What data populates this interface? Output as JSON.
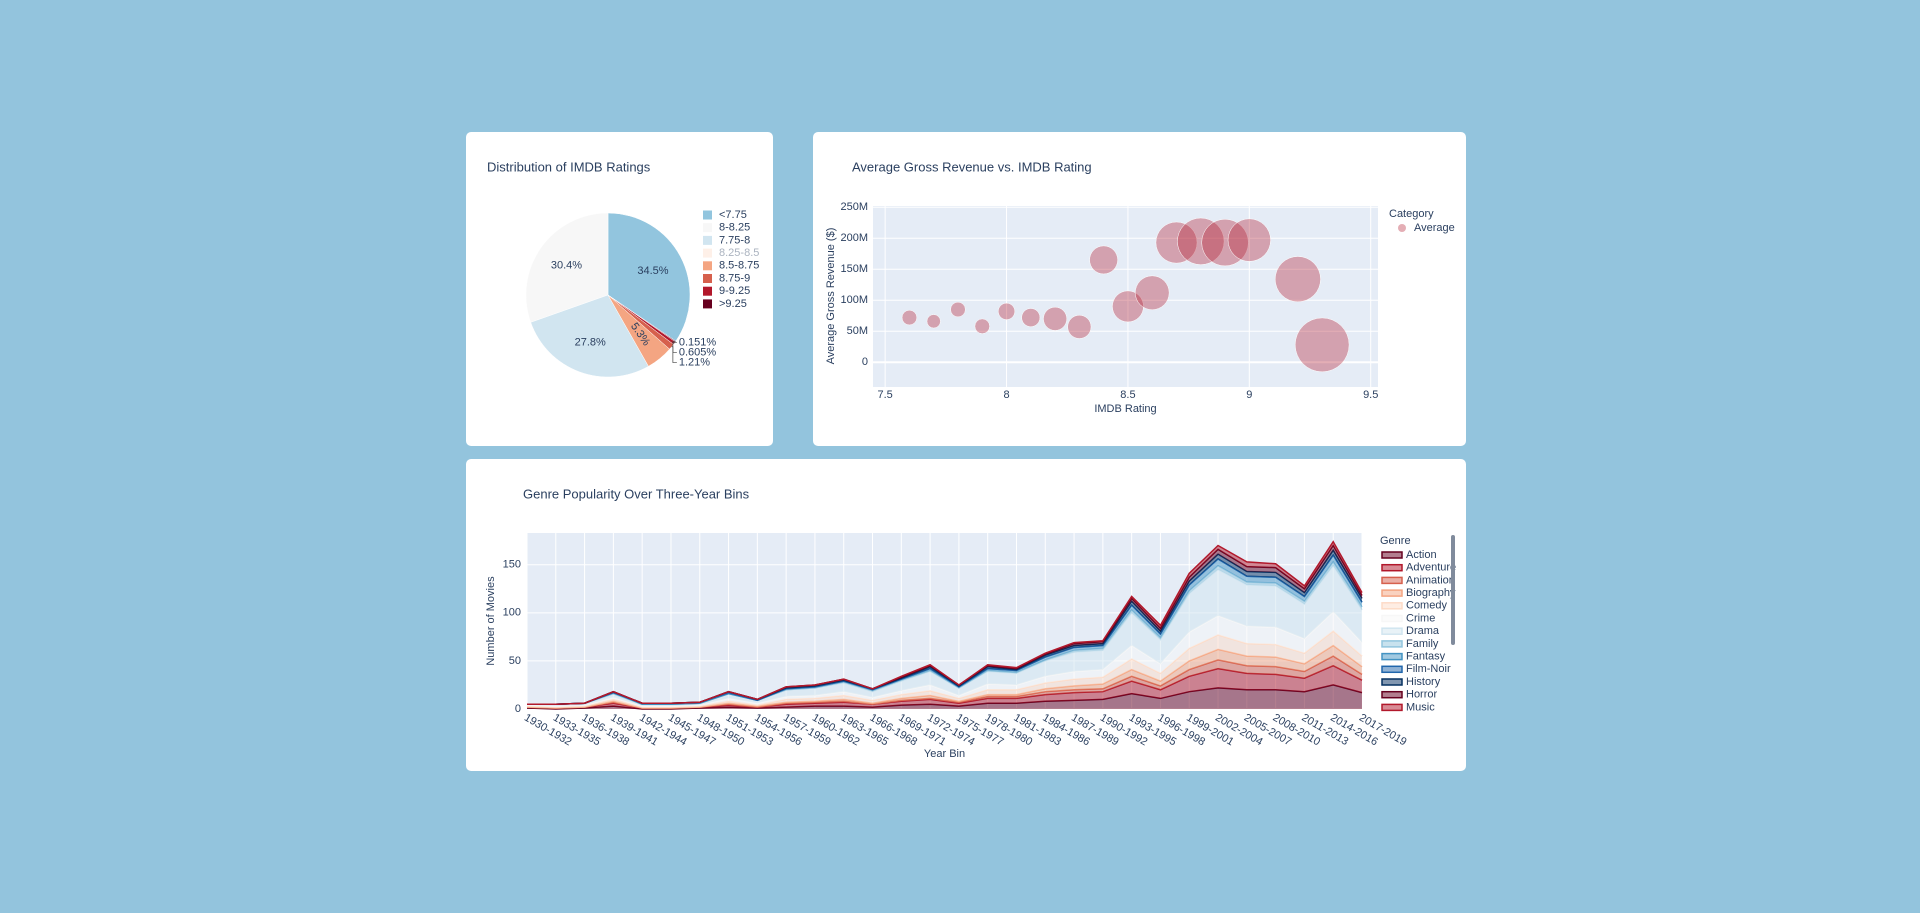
{
  "chart_data": [
    {
      "type": "pie",
      "title": "Distribution of IMDB Ratings",
      "categories": [
        "<7.75",
        "8-8.25",
        "7.75-8",
        "8.25-8.5",
        "8.5-8.75",
        "8.75-9",
        "9-9.25",
        ">9.25"
      ],
      "values": [
        34.5,
        30.4,
        27.8,
        null,
        5.3,
        1.21,
        0.605,
        0.151
      ],
      "value_labels": [
        "34.5%",
        "30.4%",
        "27.8%",
        null,
        "5.3%",
        "1.21%",
        "0.605%",
        "0.151%"
      ],
      "colors": [
        "#92c5de",
        "#f7f7f7",
        "#d1e5f0",
        "#fddbc7",
        "#f4a582",
        "#d6604d",
        "#b2182b",
        "#67001f"
      ]
    },
    {
      "type": "bubble",
      "title": "Average Gross Revenue vs. IMDB Rating",
      "x_label": "IMDB Rating",
      "y_label": "Average Gross Revenue ($)",
      "legend_title": "Category",
      "x": [
        7.6,
        7.7,
        7.8,
        7.9,
        8.0,
        8.1,
        8.2,
        8.3,
        8.4,
        8.5,
        8.6,
        8.7,
        8.8,
        8.9,
        9.0,
        9.2,
        9.3
      ],
      "series": [
        {
          "name": "Average",
          "color": "#b2182b",
          "opacity": 0.35,
          "values": [
            72000000,
            66000000,
            85000000,
            58000000,
            82000000,
            72000000,
            70000000,
            57000000,
            165000000,
            90000000,
            112000000,
            193000000,
            195000000,
            193000000,
            197000000,
            134000000,
            28000000
          ],
          "sizes": [
            36,
            30,
            36,
            36,
            45,
            55,
            90,
            90,
            130,
            160,
            190,
            280,
            360,
            360,
            300,
            340,
            480
          ]
        }
      ],
      "xlim": [
        7.45,
        9.53
      ],
      "xticks": [
        7.5,
        8,
        8.5,
        9,
        9.5
      ],
      "ylim": [
        -40000000,
        252000000
      ],
      "yticks": [
        {
          "value": 0,
          "label": "0"
        },
        {
          "value": 50000000,
          "label": "50M"
        },
        {
          "value": 100000000,
          "label": "100M"
        },
        {
          "value": 150000000,
          "label": "150M"
        },
        {
          "value": 200000000,
          "label": "200M"
        },
        {
          "value": 250000000,
          "label": "250M"
        }
      ],
      "grid": true
    },
    {
      "type": "stacked_area",
      "title": "Genre Popularity Over Three-Year Bins",
      "x_label": "Year Bin",
      "y_label": "Number of Movies",
      "legend_title": "Genre",
      "categories": [
        "1930-1932",
        "1933-1935",
        "1936-1938",
        "1939-1941",
        "1942-1944",
        "1945-1947",
        "1948-1950",
        "1951-1953",
        "1954-1956",
        "1957-1959",
        "1960-1962",
        "1963-1965",
        "1966-1968",
        "1969-1971",
        "1972-1974",
        "1975-1977",
        "1978-1980",
        "1981-1983",
        "1984-1986",
        "1987-1989",
        "1990-1992",
        "1993-1995",
        "1996-1998",
        "1999-2001",
        "2002-2004",
        "2005-2007",
        "2008-2010",
        "2011-2013",
        "2014-2016",
        "2017-2019"
      ],
      "series": [
        {
          "name": "Action",
          "color": "#67001f",
          "values": [
            1,
            0,
            1,
            3,
            0,
            0,
            1,
            2,
            1,
            2,
            3,
            3,
            2,
            4,
            5,
            3,
            6,
            6,
            8,
            9,
            10,
            16,
            11,
            18,
            22,
            20,
            20,
            18,
            25,
            17
          ]
        },
        {
          "name": "Adventure",
          "color": "#b2182b",
          "values": [
            1,
            1,
            1,
            3,
            1,
            1,
            1,
            2,
            1,
            3,
            3,
            4,
            3,
            4,
            5,
            3,
            5,
            5,
            7,
            8,
            8,
            13,
            9,
            16,
            20,
            17,
            16,
            14,
            20,
            13
          ]
        },
        {
          "name": "Animation",
          "color": "#d6604d",
          "values": [
            0,
            0,
            0,
            1,
            0,
            0,
            0,
            1,
            0,
            1,
            1,
            1,
            0,
            1,
            1,
            1,
            2,
            2,
            3,
            3,
            3,
            5,
            4,
            7,
            9,
            8,
            8,
            7,
            10,
            6
          ]
        },
        {
          "name": "Biography",
          "color": "#f4a582",
          "values": [
            0,
            0,
            0,
            1,
            0,
            0,
            0,
            1,
            1,
            1,
            1,
            2,
            1,
            2,
            3,
            1,
            2,
            2,
            3,
            4,
            5,
            7,
            5,
            9,
            11,
            10,
            10,
            8,
            11,
            8
          ]
        },
        {
          "name": "Comedy",
          "color": "#fddbc7",
          "values": [
            1,
            1,
            1,
            2,
            1,
            1,
            1,
            2,
            1,
            3,
            3,
            4,
            3,
            4,
            5,
            3,
            5,
            5,
            6,
            7,
            7,
            11,
            8,
            13,
            15,
            13,
            13,
            11,
            15,
            11
          ]
        },
        {
          "name": "Crime",
          "color": "#f7f7f7",
          "values": [
            1,
            1,
            1,
            2,
            1,
            1,
            1,
            3,
            2,
            3,
            3,
            4,
            3,
            4,
            6,
            3,
            6,
            5,
            7,
            8,
            8,
            14,
            10,
            17,
            20,
            18,
            18,
            15,
            20,
            14
          ]
        },
        {
          "name": "Drama",
          "color": "#d1e5f0",
          "values": [
            1,
            2,
            2,
            4,
            2,
            2,
            2,
            5,
            3,
            7,
            8,
            9,
            6,
            10,
            14,
            8,
            13,
            12,
            16,
            20,
            20,
            34,
            25,
            40,
            48,
            43,
            43,
            36,
            48,
            34
          ]
        },
        {
          "name": "Family",
          "color": "#92c5de",
          "values": [
            0,
            0,
            0,
            0,
            0,
            0,
            0,
            0,
            0,
            0,
            0,
            1,
            1,
            1,
            1,
            0,
            1,
            1,
            1,
            2,
            2,
            3,
            2,
            3,
            4,
            3,
            3,
            3,
            4,
            3
          ]
        },
        {
          "name": "Fantasy",
          "color": "#4393c3",
          "values": [
            0,
            0,
            0,
            1,
            0,
            0,
            0,
            0,
            0,
            1,
            1,
            1,
            1,
            1,
            2,
            1,
            2,
            2,
            3,
            3,
            3,
            5,
            4,
            6,
            7,
            6,
            6,
            5,
            7,
            5
          ]
        },
        {
          "name": "Film-Noir",
          "color": "#2166ac",
          "values": [
            0,
            0,
            0,
            0,
            1,
            1,
            1,
            1,
            0,
            0,
            0,
            0,
            0,
            0,
            0,
            0,
            0,
            0,
            0,
            0,
            0,
            0,
            0,
            0,
            0,
            0,
            0,
            0,
            0,
            0
          ]
        },
        {
          "name": "History",
          "color": "#053061",
          "values": [
            0,
            0,
            0,
            1,
            0,
            0,
            0,
            1,
            1,
            1,
            1,
            1,
            1,
            1,
            2,
            1,
            2,
            1,
            2,
            2,
            2,
            4,
            3,
            4,
            5,
            5,
            5,
            4,
            5,
            4
          ]
        },
        {
          "name": "Horror",
          "color": "#67001f",
          "values": [
            0,
            0,
            0,
            0,
            0,
            0,
            0,
            0,
            0,
            1,
            1,
            1,
            0,
            1,
            1,
            1,
            1,
            1,
            1,
            2,
            2,
            3,
            3,
            4,
            5,
            5,
            5,
            4,
            5,
            3
          ]
        },
        {
          "name": "Music",
          "color": "#b2182b",
          "values": [
            0,
            0,
            0,
            0,
            0,
            0,
            0,
            0,
            0,
            0,
            0,
            0,
            0,
            1,
            1,
            0,
            1,
            1,
            1,
            1,
            1,
            2,
            3,
            4,
            4,
            5,
            4,
            3,
            4,
            3
          ]
        }
      ],
      "ylim": [
        0,
        183
      ],
      "yticks": [
        0,
        50,
        100,
        150
      ],
      "grid": true
    }
  ]
}
